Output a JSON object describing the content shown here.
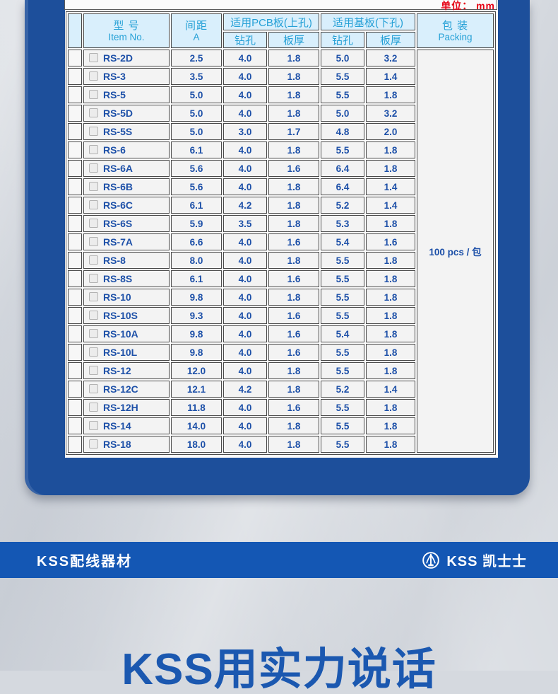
{
  "unit_label": "单位： mm",
  "table": {
    "header": {
      "item_no": {
        "zh": "型  号",
        "en": "Item No."
      },
      "pitch": {
        "zh": "间距",
        "en": "A"
      },
      "pcb_group": "适用PCB板(上孔)",
      "base_group": "适用基板(下孔)",
      "drill": "钻孔",
      "thickness": "板厚",
      "packing": {
        "zh": "包  装",
        "en": "Packing"
      }
    },
    "rows": [
      {
        "item": "RS-2D",
        "pitch": "2.5",
        "pcb_drill": "4.0",
        "pcb_thk": "1.8",
        "base_drill": "5.0",
        "base_thk": "3.2"
      },
      {
        "item": "RS-3",
        "pitch": "3.5",
        "pcb_drill": "4.0",
        "pcb_thk": "1.8",
        "base_drill": "5.5",
        "base_thk": "1.4"
      },
      {
        "item": "RS-5",
        "pitch": "5.0",
        "pcb_drill": "4.0",
        "pcb_thk": "1.8",
        "base_drill": "5.5",
        "base_thk": "1.8"
      },
      {
        "item": "RS-5D",
        "pitch": "5.0",
        "pcb_drill": "4.0",
        "pcb_thk": "1.8",
        "base_drill": "5.0",
        "base_thk": "3.2"
      },
      {
        "item": "RS-5S",
        "pitch": "5.0",
        "pcb_drill": "3.0",
        "pcb_thk": "1.7",
        "base_drill": "4.8",
        "base_thk": "2.0"
      },
      {
        "item": "RS-6",
        "pitch": "6.1",
        "pcb_drill": "4.0",
        "pcb_thk": "1.8",
        "base_drill": "5.5",
        "base_thk": "1.8"
      },
      {
        "item": "RS-6A",
        "pitch": "5.6",
        "pcb_drill": "4.0",
        "pcb_thk": "1.6",
        "base_drill": "6.4",
        "base_thk": "1.8"
      },
      {
        "item": "RS-6B",
        "pitch": "5.6",
        "pcb_drill": "4.0",
        "pcb_thk": "1.8",
        "base_drill": "6.4",
        "base_thk": "1.4"
      },
      {
        "item": "RS-6C",
        "pitch": "6.1",
        "pcb_drill": "4.2",
        "pcb_thk": "1.8",
        "base_drill": "5.2",
        "base_thk": "1.4"
      },
      {
        "item": "RS-6S",
        "pitch": "5.9",
        "pcb_drill": "3.5",
        "pcb_thk": "1.8",
        "base_drill": "5.3",
        "base_thk": "1.8"
      },
      {
        "item": "RS-7A",
        "pitch": "6.6",
        "pcb_drill": "4.0",
        "pcb_thk": "1.6",
        "base_drill": "5.4",
        "base_thk": "1.6"
      },
      {
        "item": "RS-8",
        "pitch": "8.0",
        "pcb_drill": "4.0",
        "pcb_thk": "1.8",
        "base_drill": "5.5",
        "base_thk": "1.8"
      },
      {
        "item": "RS-8S",
        "pitch": "6.1",
        "pcb_drill": "4.0",
        "pcb_thk": "1.6",
        "base_drill": "5.5",
        "base_thk": "1.8"
      },
      {
        "item": "RS-10",
        "pitch": "9.8",
        "pcb_drill": "4.0",
        "pcb_thk": "1.8",
        "base_drill": "5.5",
        "base_thk": "1.8"
      },
      {
        "item": "RS-10S",
        "pitch": "9.3",
        "pcb_drill": "4.0",
        "pcb_thk": "1.6",
        "base_drill": "5.5",
        "base_thk": "1.8"
      },
      {
        "item": "RS-10A",
        "pitch": "9.8",
        "pcb_drill": "4.0",
        "pcb_thk": "1.6",
        "base_drill": "5.4",
        "base_thk": "1.8"
      },
      {
        "item": "RS-10L",
        "pitch": "9.8",
        "pcb_drill": "4.0",
        "pcb_thk": "1.6",
        "base_drill": "5.5",
        "base_thk": "1.8"
      },
      {
        "item": "RS-12",
        "pitch": "12.0",
        "pcb_drill": "4.0",
        "pcb_thk": "1.8",
        "base_drill": "5.5",
        "base_thk": "1.8"
      },
      {
        "item": "RS-12C",
        "pitch": "12.1",
        "pcb_drill": "4.2",
        "pcb_thk": "1.8",
        "base_drill": "5.2",
        "base_thk": "1.4"
      },
      {
        "item": "RS-12H",
        "pitch": "11.8",
        "pcb_drill": "4.0",
        "pcb_thk": "1.6",
        "base_drill": "5.5",
        "base_thk": "1.8"
      },
      {
        "item": "RS-14",
        "pitch": "14.0",
        "pcb_drill": "4.0",
        "pcb_thk": "1.8",
        "base_drill": "5.5",
        "base_thk": "1.8"
      },
      {
        "item": "RS-18",
        "pitch": "18.0",
        "pcb_drill": "4.0",
        "pcb_thk": "1.8",
        "base_drill": "5.5",
        "base_thk": "1.8"
      }
    ],
    "packing_value": "100 pcs / 包"
  },
  "footer": {
    "left": "KSS配线器材",
    "brand": "KSS 凯士士"
  },
  "slogan": "KSS用实力说话",
  "colors": {
    "panel_blue": "#1d4f9b",
    "bar_blue": "#1457b4",
    "slogan_blue": "#1b58b0",
    "unit_red": "#e60013",
    "header_bg": "#d9effc",
    "header_text": "#25a0d6",
    "value_text": "#1d50a8",
    "background_gray": "#d5d9df"
  }
}
